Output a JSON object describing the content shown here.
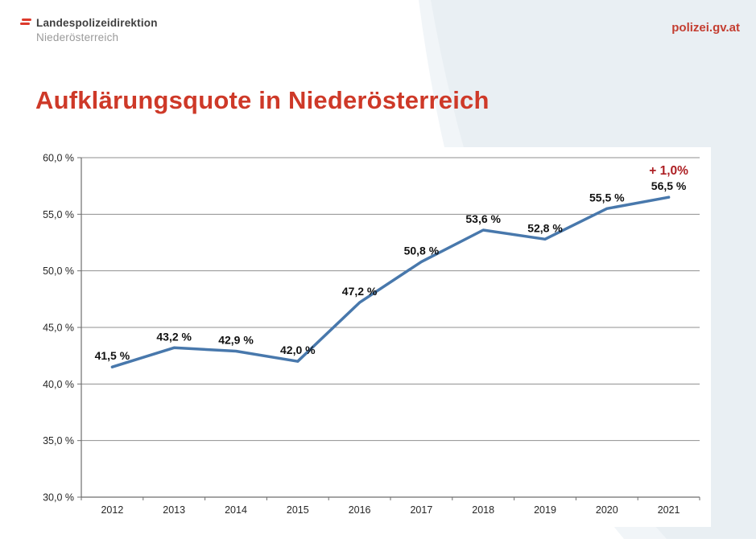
{
  "header": {
    "logo_icon": "austria-red-bars-icon",
    "org_line1": "Landespolizeidirektion",
    "org_line2": "Niederösterreich",
    "website": "polizei.gv.at"
  },
  "page_title": "Aufklärungsquote in Niederösterreich",
  "colors": {
    "brand_red": "#CE3928",
    "website_red": "#C43E31",
    "logo_red": "#DD3A2C",
    "annotation_red": "#AD1F23",
    "line_blue": "#4878AC",
    "band_light": "#F1F5F8",
    "band_main": "#E9EFF3",
    "grid_gray": "#8F8F8F",
    "axis_gray": "#6E6E6E",
    "tick_text": "#262626",
    "value_text": "#111111",
    "panel_white": "#FFFFFF"
  },
  "chart_data": {
    "type": "line",
    "title": "Aufklärungsquote in Niederösterreich",
    "categories": [
      "2012",
      "2013",
      "2014",
      "2015",
      "2016",
      "2017",
      "2018",
      "2019",
      "2020",
      "2021"
    ],
    "values": [
      41.5,
      43.2,
      42.9,
      42.0,
      47.2,
      50.8,
      53.6,
      52.8,
      55.5,
      56.5
    ],
    "value_labels": [
      "41,5 %",
      "43,2 %",
      "42,9 %",
      "42,0 %",
      "47,2 %",
      "50,8 %",
      "53,6 %",
      "52,8 %",
      "55,5 %",
      "56,5 %"
    ],
    "annotation": {
      "text": "+ 1,0%",
      "applies_to": "2021"
    },
    "xlabel": "",
    "ylabel": "",
    "ylim": [
      30,
      60
    ],
    "ytick_step": 5,
    "ytick_labels": [
      "30,0 %",
      "35,0 %",
      "40,0 %",
      "45,0 %",
      "50,0 %",
      "55,0 %",
      "60,0 %"
    ],
    "grid": true,
    "legend": false
  }
}
